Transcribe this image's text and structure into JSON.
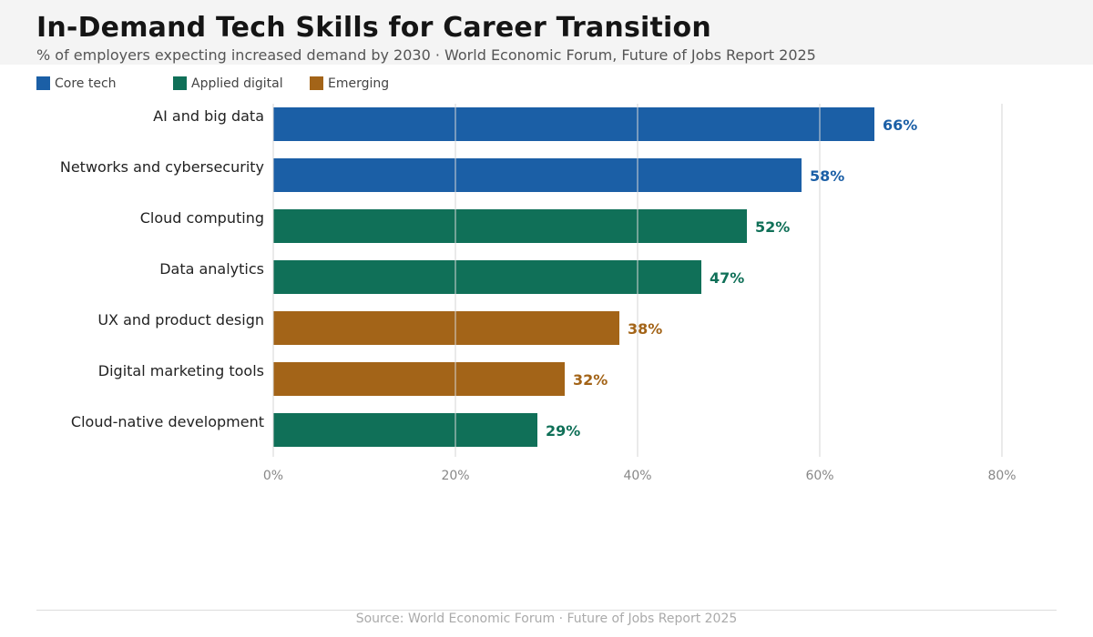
{
  "header": {
    "title": "In-Demand Tech Skills for Career Transition",
    "subtitle": "% of employers expecting increased demand by 2030  ·  World Economic Forum, Future of Jobs Report 2025"
  },
  "legend": [
    {
      "label": "Core tech",
      "color": "#1b5fa6"
    },
    {
      "label": "Applied digital",
      "color": "#107058"
    },
    {
      "label": "Emerging",
      "color": "#a36418"
    }
  ],
  "colors": {
    "core_tech": "#1b5fa6",
    "applied_digital": "#107058",
    "emerging": "#a36418",
    "gridline": "#d6d6d6",
    "tick_label": "#888888"
  },
  "chart_data": {
    "type": "bar",
    "orientation": "horizontal",
    "categories": [
      "AI and big data",
      "Networks and cybersecurity",
      "Cloud computing",
      "Data analytics",
      "UX and product design",
      "Digital marketing tools",
      "Cloud-native development"
    ],
    "values": [
      66,
      58,
      52,
      47,
      38,
      32,
      29
    ],
    "groups": [
      "Core tech",
      "Core tech",
      "Applied digital",
      "Applied digital",
      "Emerging",
      "Emerging",
      "Applied digital"
    ],
    "data_labels": [
      "66%",
      "58%",
      "52%",
      "47%",
      "38%",
      "32%",
      "29%"
    ],
    "xlim": [
      0,
      80
    ],
    "x_ticks": [
      0,
      20,
      40,
      60,
      80
    ],
    "x_tick_labels": [
      "0%",
      "20%",
      "40%",
      "60%",
      "80%"
    ],
    "grid": "vertical",
    "legend_position": "top-left"
  },
  "footer": {
    "source": "Source: World Economic Forum · Future of Jobs Report 2025"
  }
}
